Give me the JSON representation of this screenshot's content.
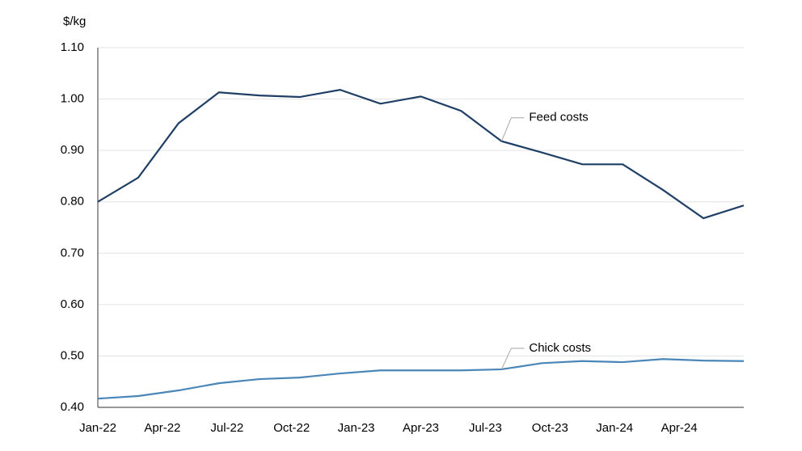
{
  "chart_data": {
    "type": "line",
    "y_label": "$/kg",
    "x": [
      0,
      1.875,
      3.75,
      5.625,
      7.5,
      9.375,
      11.25,
      13.125,
      15,
      16.875,
      18.75,
      20.625,
      22.5,
      24.375,
      26.25,
      28.125,
      30
    ],
    "xlim": [
      0,
      30
    ],
    "xticks": [
      {
        "value": 0,
        "label": "Jan-22"
      },
      {
        "value": 3,
        "label": "Apr-22"
      },
      {
        "value": 6,
        "label": "Jul-22"
      },
      {
        "value": 9,
        "label": "Oct-22"
      },
      {
        "value": 12,
        "label": "Jan-23"
      },
      {
        "value": 15,
        "label": "Apr-23"
      },
      {
        "value": 18,
        "label": "Jul-23"
      },
      {
        "value": 21,
        "label": "Oct-23"
      },
      {
        "value": 24,
        "label": "Jan-24"
      },
      {
        "value": 27,
        "label": "Apr-24"
      }
    ],
    "ylim": [
      0.4,
      1.1
    ],
    "yticks": [
      {
        "value": 0.4,
        "label": "0.40"
      },
      {
        "value": 0.5,
        "label": "0.50"
      },
      {
        "value": 0.6,
        "label": "0.60"
      },
      {
        "value": 0.7,
        "label": "0.70"
      },
      {
        "value": 0.8,
        "label": "0.80"
      },
      {
        "value": 0.9,
        "label": "0.90"
      },
      {
        "value": 1.0,
        "label": "1.00"
      },
      {
        "value": 1.1,
        "label": "1.10"
      }
    ],
    "grid": true,
    "series": [
      {
        "name": "Feed costs",
        "color": "#1f3f66",
        "label_at": 10,
        "values": [
          0.8,
          0.847,
          0.953,
          1.013,
          1.007,
          1.004,
          1.018,
          0.991,
          1.005,
          0.977,
          0.918,
          0.896,
          0.873,
          0.873,
          0.823,
          0.768,
          0.793
        ]
      },
      {
        "name": "Chick costs",
        "color": "#4a86b8",
        "label_at": 10,
        "values": [
          0.417,
          0.422,
          0.433,
          0.447,
          0.455,
          0.458,
          0.466,
          0.472,
          0.472,
          0.472,
          0.474,
          0.486,
          0.49,
          0.488,
          0.494,
          0.491,
          0.49
        ]
      }
    ]
  }
}
